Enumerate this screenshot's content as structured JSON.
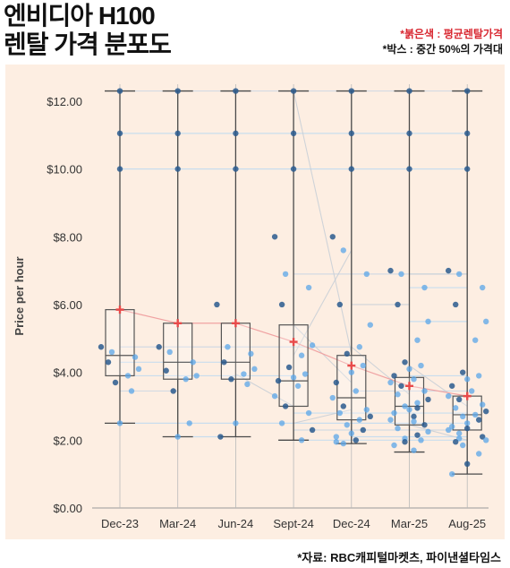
{
  "header": {
    "title_line1": "엔비디아 H100",
    "title_line2": "렌탈 가격 분포도",
    "note_red": "*붉은색 : 평균렌탈가격",
    "note_box": "*박스 : 중간 50%의 가격대"
  },
  "source": "*자료: RBC캐피털마켓츠, 파이낸셜타임스",
  "colors": {
    "panel_bg": "#fdeee2",
    "mean_marker": "#e84a4a",
    "dot_dark": "#2a5a8e",
    "dot_light": "#5aa6e8",
    "box_stroke": "#555555"
  },
  "chart_data": {
    "type": "box",
    "ylabel": "Price per hour",
    "ylim": [
      0,
      12.5
    ],
    "yticks": [
      "$0.00",
      "$2.00",
      "$4.00",
      "$6.00",
      "$8.00",
      "$10.00",
      "$12.00"
    ],
    "ytick_values": [
      0,
      2,
      4,
      6,
      8,
      10,
      12
    ],
    "categories": [
      "Dec-23",
      "Mar-24",
      "Jun-24",
      "Sept-24",
      "Dec-24",
      "Mar-25",
      "Aug-25"
    ],
    "boxes": [
      {
        "q1": 3.9,
        "median": 4.5,
        "q3": 5.85,
        "min": 2.5,
        "max": 12.3,
        "mean": 5.85
      },
      {
        "q1": 3.8,
        "median": 4.3,
        "q3": 5.45,
        "min": 2.1,
        "max": 12.3,
        "mean": 5.45
      },
      {
        "q1": 3.8,
        "median": 4.3,
        "q3": 5.45,
        "min": 2.1,
        "max": 12.3,
        "mean": 5.45
      },
      {
        "q1": 3.0,
        "median": 3.75,
        "q3": 5.4,
        "min": 2.0,
        "max": 12.3,
        "mean": 4.9
      },
      {
        "q1": 2.6,
        "median": 3.25,
        "q3": 4.5,
        "min": 1.9,
        "max": 12.3,
        "mean": 4.2
      },
      {
        "q1": 2.45,
        "median": 3.0,
        "q3": 3.85,
        "min": 1.65,
        "max": 12.3,
        "mean": 3.6
      },
      {
        "q1": 2.3,
        "median": 2.75,
        "q3": 3.3,
        "min": 1.0,
        "max": 12.3,
        "mean": 3.3
      }
    ],
    "points": [
      [
        12.3,
        11.05,
        10.0,
        4.75,
        4.6,
        4.45,
        4.3,
        4.1,
        3.9,
        3.7,
        3.45,
        2.5
      ],
      [
        12.3,
        11.05,
        10.0,
        4.75,
        4.6,
        4.3,
        4.05,
        3.9,
        3.8,
        3.45,
        2.5,
        2.1
      ],
      [
        12.3,
        11.05,
        10.0,
        6.0,
        4.75,
        4.55,
        4.3,
        4.1,
        3.95,
        3.8,
        3.65,
        2.5,
        2.1
      ],
      [
        12.3,
        11.05,
        10.0,
        8.0,
        6.9,
        6.5,
        6.0,
        4.8,
        4.5,
        4.15,
        3.95,
        3.85,
        3.75,
        3.6,
        3.3,
        3.0,
        2.8,
        2.5,
        2.3,
        2.0
      ],
      [
        12.3,
        11.05,
        10.0,
        8.0,
        7.6,
        6.9,
        6.0,
        5.4,
        4.75,
        4.55,
        4.2,
        4.0,
        3.7,
        3.45,
        3.25,
        3.0,
        2.9,
        2.8,
        2.7,
        2.6,
        2.45,
        2.3,
        2.2,
        2.1,
        2.0,
        1.95,
        1.9
      ],
      [
        12.3,
        11.05,
        10.0,
        7.0,
        6.9,
        6.5,
        6.0,
        5.5,
        4.95,
        4.3,
        4.2,
        4.1,
        3.9,
        3.8,
        3.7,
        3.6,
        3.45,
        3.35,
        3.2,
        3.1,
        3.0,
        2.95,
        2.9,
        2.8,
        2.7,
        2.6,
        2.55,
        2.45,
        2.35,
        2.25,
        2.15,
        2.05,
        2.0,
        1.95,
        1.85,
        1.7
      ],
      [
        12.3,
        11.05,
        10.0,
        7.0,
        6.9,
        6.5,
        6.0,
        5.5,
        4.95,
        4.0,
        3.9,
        3.8,
        3.6,
        3.45,
        3.3,
        3.2,
        3.05,
        2.95,
        2.85,
        2.75,
        2.7,
        2.6,
        2.5,
        2.4,
        2.35,
        2.3,
        2.2,
        2.1,
        2.05,
        2.0,
        1.95,
        1.85,
        1.6,
        1.3,
        1.0
      ]
    ]
  }
}
